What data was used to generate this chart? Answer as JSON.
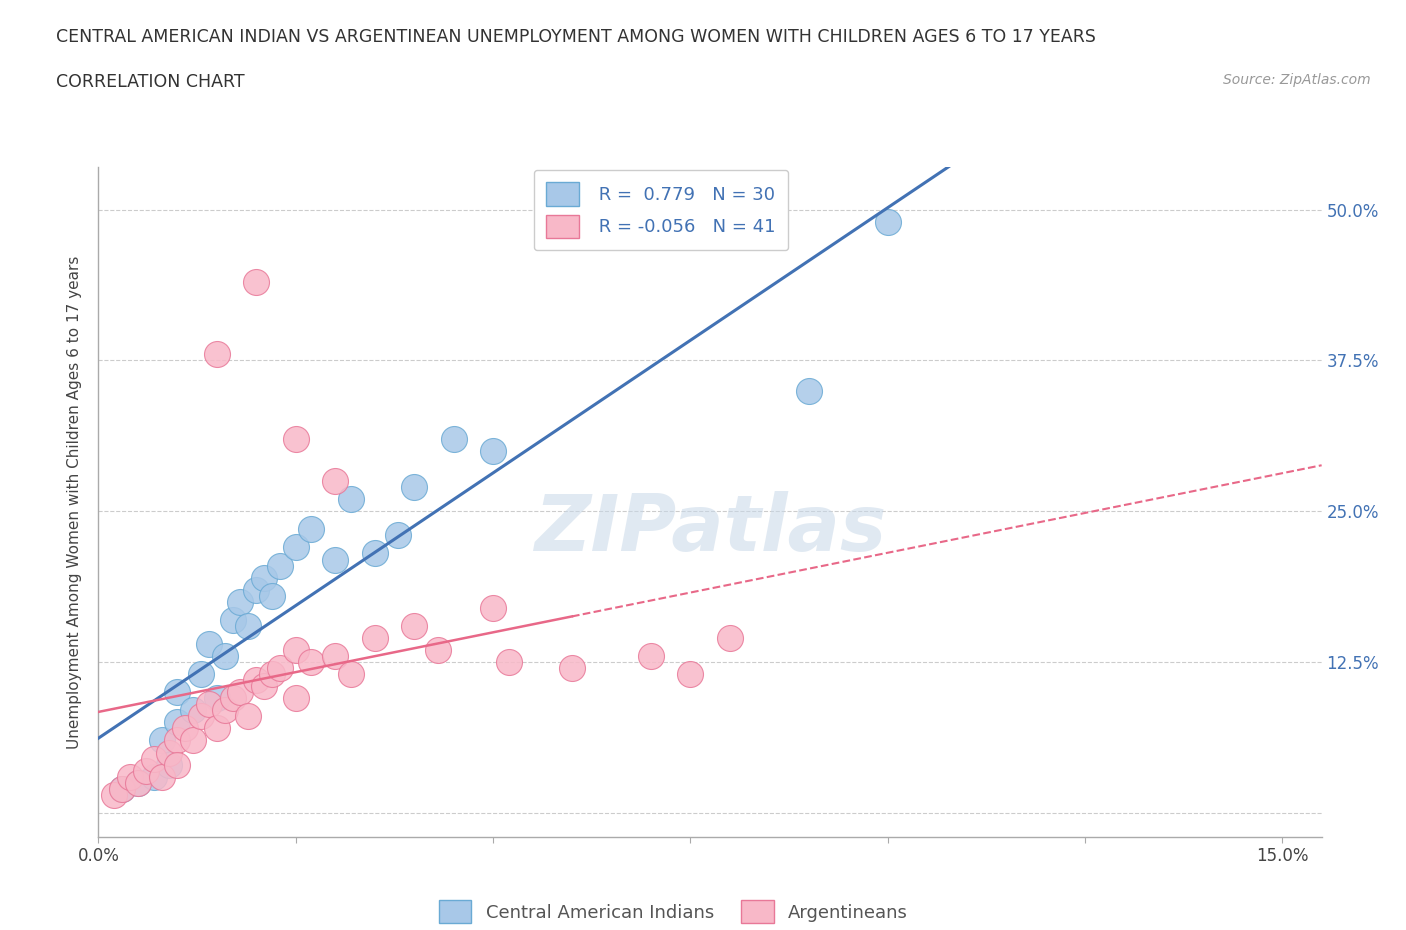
{
  "title": "CENTRAL AMERICAN INDIAN VS ARGENTINEAN UNEMPLOYMENT AMONG WOMEN WITH CHILDREN AGES 6 TO 17 YEARS",
  "subtitle": "CORRELATION CHART",
  "source": "Source: ZipAtlas.com",
  "ylabel": "Unemployment Among Women with Children Ages 6 to 17 years",
  "xlim": [
    0.0,
    0.155
  ],
  "ylim": [
    -0.02,
    0.535
  ],
  "blue_color": "#a8c8e8",
  "blue_edge": "#6aaad4",
  "pink_color": "#f8b8c8",
  "pink_edge": "#e87898",
  "line_blue": "#4272b4",
  "line_pink": "#e86888",
  "watermark": "ZIPatlas",
  "legend_R1": "0.779",
  "legend_N1": "30",
  "legend_R2": "-0.056",
  "legend_N2": "41",
  "blue_scatter_x": [
    0.003,
    0.005,
    0.007,
    0.008,
    0.009,
    0.01,
    0.01,
    0.012,
    0.013,
    0.014,
    0.015,
    0.016,
    0.017,
    0.018,
    0.019,
    0.02,
    0.021,
    0.022,
    0.023,
    0.025,
    0.027,
    0.03,
    0.032,
    0.035,
    0.038,
    0.04,
    0.045,
    0.05,
    0.09,
    0.1
  ],
  "blue_scatter_y": [
    0.02,
    0.025,
    0.03,
    0.06,
    0.04,
    0.075,
    0.1,
    0.085,
    0.115,
    0.14,
    0.095,
    0.13,
    0.16,
    0.175,
    0.155,
    0.185,
    0.195,
    0.18,
    0.205,
    0.22,
    0.235,
    0.21,
    0.26,
    0.215,
    0.23,
    0.27,
    0.31,
    0.3,
    0.35,
    0.49
  ],
  "pink_scatter_x": [
    0.002,
    0.003,
    0.004,
    0.005,
    0.006,
    0.007,
    0.008,
    0.009,
    0.01,
    0.01,
    0.011,
    0.012,
    0.013,
    0.014,
    0.015,
    0.016,
    0.017,
    0.018,
    0.019,
    0.02,
    0.021,
    0.022,
    0.023,
    0.025,
    0.025,
    0.027,
    0.03,
    0.032,
    0.035,
    0.04,
    0.043,
    0.05,
    0.052,
    0.06,
    0.07,
    0.075,
    0.08,
    0.015,
    0.02,
    0.025,
    0.03
  ],
  "pink_scatter_y": [
    0.015,
    0.02,
    0.03,
    0.025,
    0.035,
    0.045,
    0.03,
    0.05,
    0.06,
    0.04,
    0.07,
    0.06,
    0.08,
    0.09,
    0.07,
    0.085,
    0.095,
    0.1,
    0.08,
    0.11,
    0.105,
    0.115,
    0.12,
    0.135,
    0.095,
    0.125,
    0.13,
    0.115,
    0.145,
    0.155,
    0.135,
    0.17,
    0.125,
    0.12,
    0.13,
    0.115,
    0.145,
    0.38,
    0.44,
    0.31,
    0.275
  ],
  "background_color": "#ffffff",
  "grid_color": "#cccccc",
  "title_fontsize": 12.5,
  "subtitle_fontsize": 12.5,
  "source_fontsize": 10,
  "ylabel_fontsize": 11,
  "tick_fontsize": 12,
  "legend_fontsize": 13
}
